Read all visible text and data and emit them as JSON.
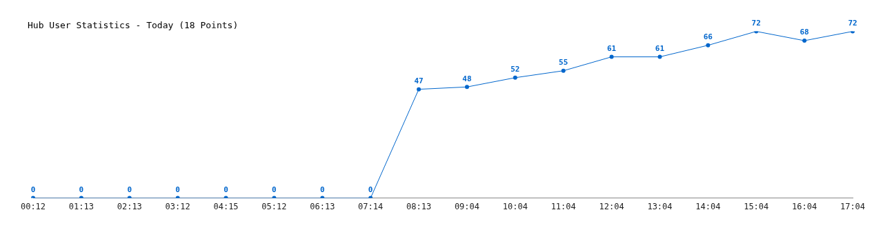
{
  "chart_data": {
    "type": "line",
    "title": "Hub User Statistics - Today (18 Points)",
    "categories": [
      "00:12",
      "01:13",
      "02:13",
      "03:12",
      "04:15",
      "05:12",
      "06:13",
      "07:14",
      "08:13",
      "09:04",
      "10:04",
      "11:04",
      "12:04",
      "13:04",
      "14:04",
      "15:04",
      "16:04",
      "17:04"
    ],
    "series": [
      {
        "color": "#0066cc",
        "values": [
          0,
          0,
          0,
          0,
          0,
          0,
          0,
          0,
          47,
          48,
          52,
          55,
          61,
          61,
          66,
          72,
          68,
          72
        ]
      }
    ],
    "data_labels": true,
    "marker": "circle",
    "line_style": "solid",
    "grid": false,
    "legend": false,
    "tick_labels": "x"
  }
}
